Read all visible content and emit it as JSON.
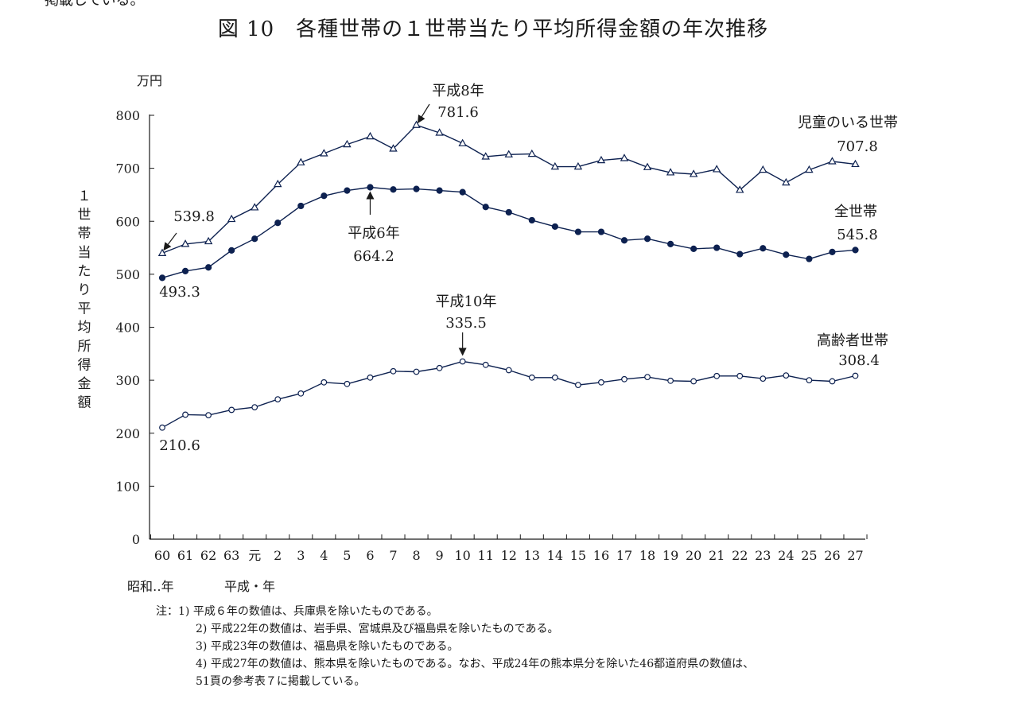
{
  "prev_text": "掲載している。",
  "title": "図 10　各種世帯の１世帯当たり平均所得金額の年次推移",
  "chart_data": {
    "type": "line",
    "title": "図 10　各種世帯の１世帯当たり平均所得金額の年次推移",
    "unit_label": "万円",
    "ylabel": "１世帯当たり平均所得金額",
    "ylim": [
      0,
      800
    ],
    "yticks": [
      0,
      100,
      200,
      300,
      400,
      500,
      600,
      700,
      800
    ],
    "categories": [
      "60",
      "61",
      "62",
      "63",
      "元",
      "2",
      "3",
      "4",
      "5",
      "6",
      "7",
      "8",
      "9",
      "10",
      "11",
      "12",
      "13",
      "14",
      "15",
      "16",
      "17",
      "18",
      "19",
      "20",
      "21",
      "22",
      "23",
      "24",
      "25",
      "26",
      "27"
    ],
    "era_labels": {
      "showa": "昭和‥年",
      "heisei": "平成・年"
    },
    "series": [
      {
        "name": "児童のいる世帯",
        "marker": "triangle",
        "values": [
          539.8,
          557,
          562,
          604,
          626,
          670,
          711,
          728,
          745,
          760,
          737,
          781.6,
          767,
          747,
          722,
          726,
          727,
          703,
          703,
          715,
          719,
          702,
          692,
          689,
          698,
          659,
          697,
          673,
          697,
          713,
          707.8
        ]
      },
      {
        "name": "全世帯",
        "marker": "filled-circle",
        "values": [
          493.3,
          506,
          513,
          545,
          567,
          597,
          629,
          648,
          658,
          664.2,
          660,
          661,
          658,
          655,
          627,
          617,
          602,
          590,
          580,
          580,
          564,
          567,
          557,
          548,
          550,
          538,
          549,
          537,
          529,
          542,
          545.8
        ]
      },
      {
        "name": "高齢者世帯",
        "marker": "open-circle",
        "values": [
          210.6,
          235,
          234,
          244,
          249,
          264,
          275,
          296,
          293,
          305,
          317,
          316,
          323,
          335.5,
          329,
          319,
          305,
          305,
          291,
          296,
          302,
          306,
          299,
          298,
          308,
          308,
          303,
          309,
          300,
          298,
          308.4
        ]
      }
    ],
    "annotations": [
      {
        "text": "539.8"
      },
      {
        "text": "493.3"
      },
      {
        "text": "210.6"
      },
      {
        "text": "平成8年"
      },
      {
        "text": "781.6"
      },
      {
        "text": "平成6年"
      },
      {
        "text": "664.2"
      },
      {
        "text": "平成10年"
      },
      {
        "text": "335.5"
      },
      {
        "text": "児童のいる世帯"
      },
      {
        "text": "707.8"
      },
      {
        "text": "全世帯"
      },
      {
        "text": "545.8"
      },
      {
        "text": "高齢者世帯"
      },
      {
        "text": "308.4"
      }
    ]
  },
  "notes": [
    "注：1) 平成６年の数値は、兵庫県を除いたものである。",
    "2) 平成22年の数値は、岩手県、宮城県及び福島県を除いたものである。",
    "3) 平成23年の数値は、福島県を除いたものである。",
    "4) 平成27年の数値は、熊本県を除いたものである。なお、平成24年の熊本県分を除いた46都道府県の数値は、",
    "51頁の参考表７に掲載している。"
  ]
}
